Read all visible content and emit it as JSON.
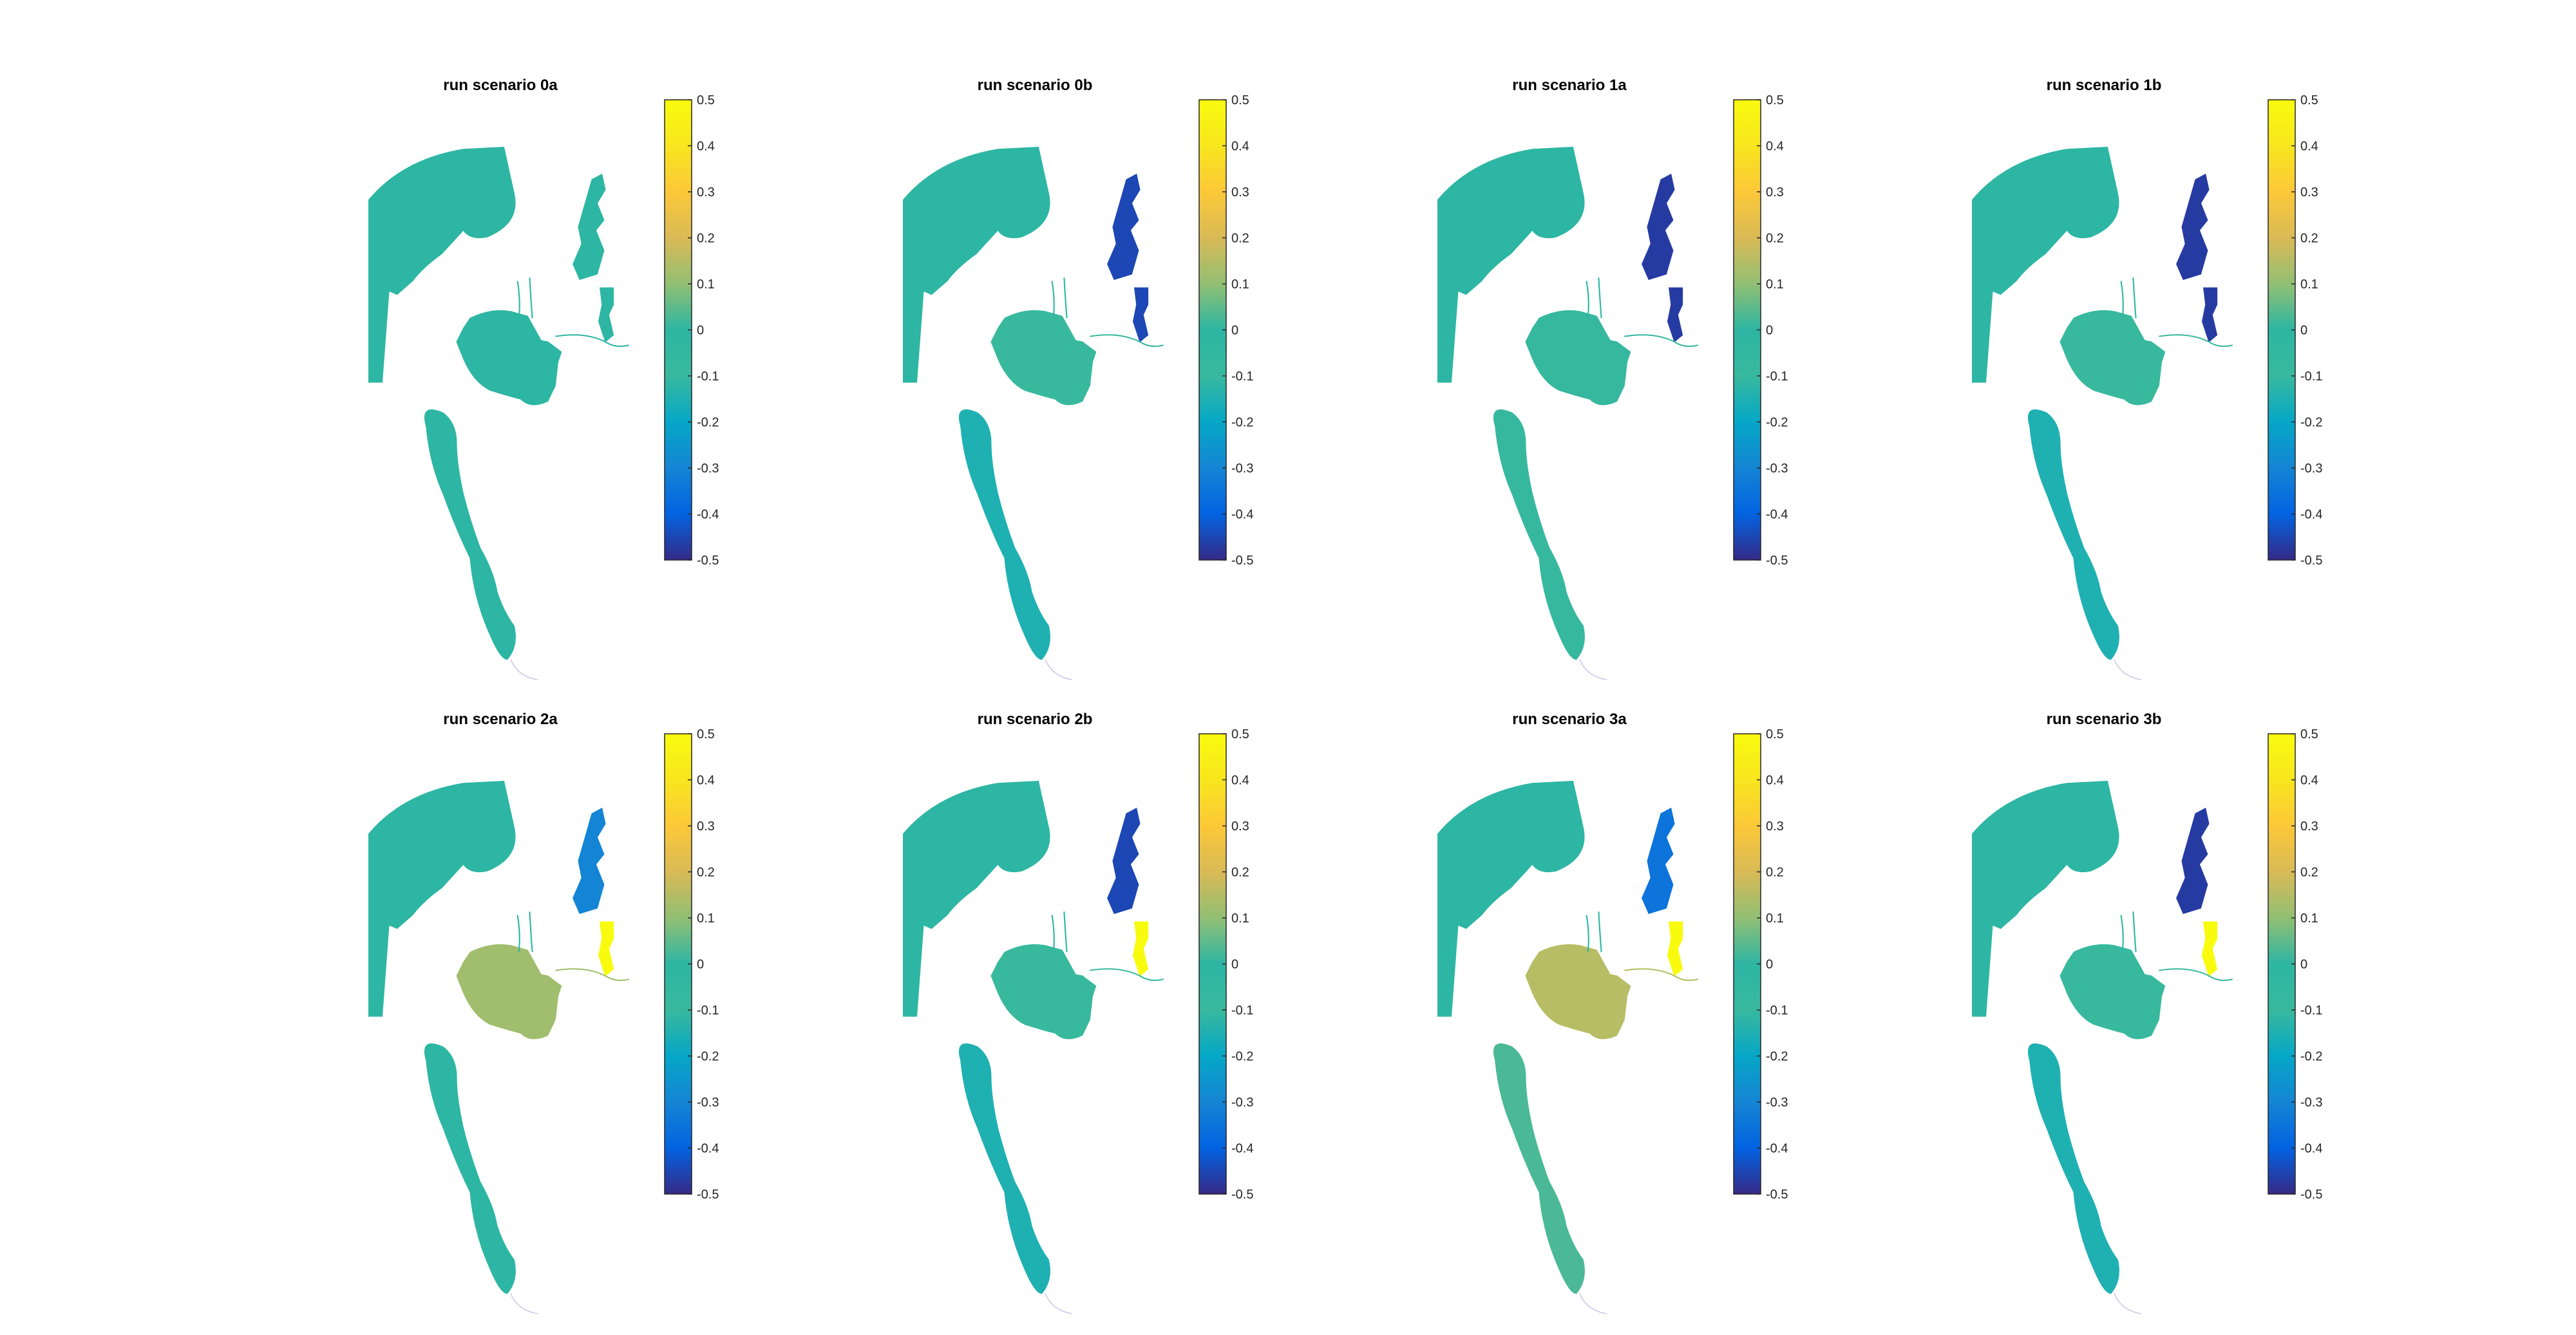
{
  "figure": {
    "colormap": "parula",
    "colorbar_ticks": [
      0.5,
      0.4,
      0.3,
      0.2,
      0.1,
      0,
      -0.1,
      -0.2,
      -0.3,
      -0.4,
      -0.5
    ],
    "colorbar_tick_labels": [
      "0.5",
      "0.4",
      "0.3",
      "0.2",
      "0.1",
      "0",
      "-0.1",
      "-0.2",
      "-0.3",
      "-0.4",
      "-0.5"
    ],
    "color_limits": [
      -0.5,
      0.5
    ]
  },
  "chart_data": [
    {
      "type": "heatmap",
      "title": "run scenario 0a",
      "clim": [
        -0.5,
        0.5
      ],
      "colorbar": "right",
      "region_values": {
        "north_sea": 0.0,
        "basin": 0.0,
        "south_estuary": 0.0,
        "upper_river": 0.0,
        "upper_side": 0.0
      }
    },
    {
      "type": "heatmap",
      "title": "run scenario 0b",
      "clim": [
        -0.5,
        0.5
      ],
      "colorbar": "right",
      "region_values": {
        "north_sea": 0.0,
        "basin": -0.1,
        "south_estuary": -0.15,
        "upper_river": -0.45,
        "upper_side": -0.45
      }
    },
    {
      "type": "heatmap",
      "title": "run scenario 1a",
      "clim": [
        -0.5,
        0.5
      ],
      "colorbar": "right",
      "region_values": {
        "north_sea": 0.0,
        "basin": -0.08,
        "south_estuary": -0.08,
        "upper_river": -0.47,
        "upper_side": -0.47
      }
    },
    {
      "type": "heatmap",
      "title": "run scenario 1b",
      "clim": [
        -0.5,
        0.5
      ],
      "colorbar": "right",
      "region_values": {
        "north_sea": 0.0,
        "basin": -0.1,
        "south_estuary": -0.15,
        "upper_river": -0.47,
        "upper_side": -0.47
      }
    },
    {
      "type": "heatmap",
      "title": "run scenario 2a",
      "clim": [
        -0.5,
        0.5
      ],
      "colorbar": "right",
      "region_values": {
        "north_sea": 0.0,
        "basin": 0.12,
        "south_estuary": 0.0,
        "upper_river": -0.3,
        "upper_side": 0.5
      }
    },
    {
      "type": "heatmap",
      "title": "run scenario 2b",
      "clim": [
        -0.5,
        0.5
      ],
      "colorbar": "right",
      "region_values": {
        "north_sea": 0.0,
        "basin": -0.1,
        "south_estuary": -0.15,
        "upper_river": -0.45,
        "upper_side": 0.5
      }
    },
    {
      "type": "heatmap",
      "title": "run scenario 3a",
      "clim": [
        -0.5,
        0.5
      ],
      "colorbar": "right",
      "region_values": {
        "north_sea": 0.0,
        "basin": 0.15,
        "south_estuary": 0.03,
        "upper_river": -0.35,
        "upper_side": 0.5
      }
    },
    {
      "type": "heatmap",
      "title": "run scenario 3b",
      "clim": [
        -0.5,
        0.5
      ],
      "colorbar": "right",
      "region_values": {
        "north_sea": 0.0,
        "basin": -0.1,
        "south_estuary": -0.15,
        "upper_river": -0.47,
        "upper_side": 0.5
      }
    }
  ]
}
